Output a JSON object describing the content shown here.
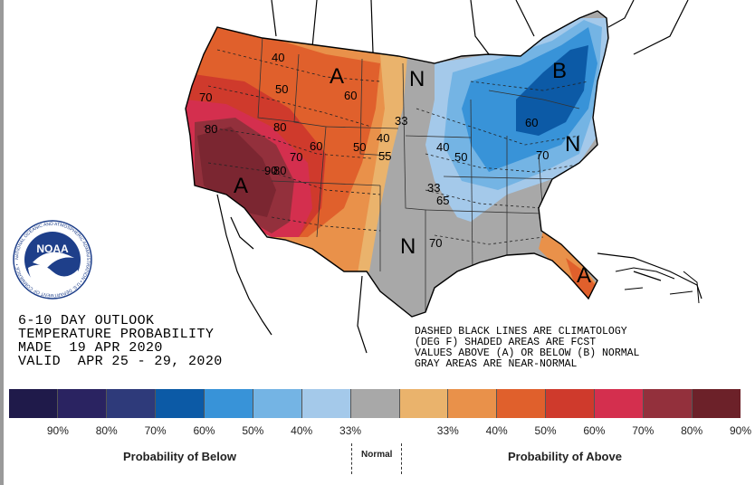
{
  "map": {
    "letters": {
      "north_plains": "A",
      "southwest": "A",
      "florida": "A",
      "great_lakes": "B",
      "central_plains": "N",
      "texas": "N",
      "northeast": "N"
    },
    "contour_labels": {
      "nw_40": "40",
      "nw_50": "50",
      "mt_60": "60",
      "pac_70": "70",
      "pac_80": "80",
      "nv_80b": "80",
      "nv_90": "90",
      "ut_80": "80",
      "ut_70": "70",
      "co_60": "60",
      "ks_50": "50",
      "ks_40": "40",
      "dak_33": "33",
      "ok_55": "55",
      "mw_40": "40",
      "mw_50": "50",
      "mw_33": "33",
      "mw_65": "65",
      "gl_60": "60",
      "gl_70": "70",
      "tx_70": "70"
    }
  },
  "info": {
    "line1": "6-10 DAY OUTLOOK",
    "line2": "TEMPERATURE PROBABILITY",
    "line3": "MADE  19 APR 2020",
    "line4": "VALID  APR 25 - 29, 2020"
  },
  "notes": {
    "line1": "DASHED BLACK LINES ARE CLIMATOLOGY",
    "line2": "(DEG F) SHADED AREAS ARE FCST",
    "line3": "VALUES ABOVE (A) OR BELOW (B) NORMAL",
    "line4": "GRAY AREAS ARE NEAR-NORMAL"
  },
  "logo": {
    "text": "NOAA",
    "ring_text": "NATIONAL OCEANIC AND ATMOSPHERIC ADMINISTRATION • U.S. DEPARTMENT OF COMMERCE •"
  },
  "legend": {
    "swatches": [
      "#1f1a4a",
      "#2a2361",
      "#2e3a7a",
      "#0c5aa6",
      "#3893d8",
      "#74b4e4",
      "#a4c9ea",
      "#a8a8a8",
      "#eab36c",
      "#e9914a",
      "#e0602c",
      "#cf3a2c",
      "#d42f4e",
      "#93303c",
      "#6c2129"
    ],
    "labels": [
      "90%",
      "80%",
      "70%",
      "60%",
      "50%",
      "40%",
      "33%",
      "33%",
      "40%",
      "50%",
      "60%",
      "70%",
      "80%",
      "90%"
    ],
    "caption_below": "Probability of Below",
    "caption_normal": "Normal",
    "caption_above": "Probability of Above"
  }
}
